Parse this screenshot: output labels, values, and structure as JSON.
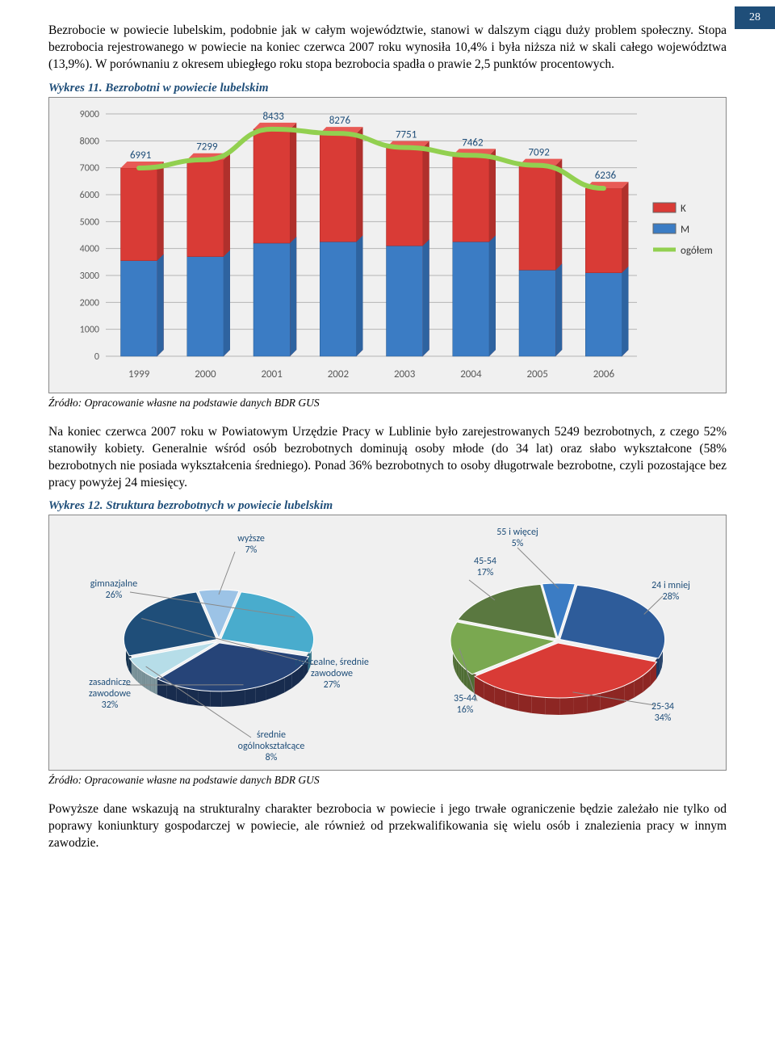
{
  "page_number": "28",
  "para1": "Bezrobocie w powiecie lubelskim, podobnie jak w całym województwie, stanowi w dalszym ciągu duży problem społeczny. Stopa bezrobocia rejestrowanego w powiecie na koniec czerwca 2007 roku wynosiła 10,4% i była niższa niż w skali całego województwa (13,9%). W porównaniu z okresem ubiegłego roku stopa bezrobocia spadła o prawie 2,5 punktów procentowych.",
  "chart1_caption": "Wykres 11. Bezrobotni w powiecie lubelskim",
  "chart1": {
    "type": "bar_stacked_with_line",
    "background": "#f0f0f0",
    "plot_bg": "#f0f0f0",
    "grid_color": "#b5b5b5",
    "y_max": 9000,
    "y_ticks": [
      0,
      1000,
      2000,
      3000,
      4000,
      5000,
      6000,
      7000,
      8000,
      9000
    ],
    "years": [
      "1999",
      "2000",
      "2001",
      "2002",
      "2003",
      "2004",
      "2005",
      "2006"
    ],
    "totals": [
      6991,
      7299,
      8433,
      8276,
      7751,
      7462,
      7092,
      6236
    ],
    "M_values": [
      3550,
      3700,
      4200,
      4250,
      4100,
      4250,
      3200,
      3100
    ],
    "K_color": "#d93b36",
    "M_color": "#3b7cc4",
    "line_color": "#92d050",
    "label_color": "#1f4e79",
    "tick_fontsize": 12,
    "label_fontsize": 13,
    "legend": [
      {
        "label": "K",
        "type": "box",
        "color": "#d93b36"
      },
      {
        "label": "M",
        "type": "box",
        "color": "#3b7cc4"
      },
      {
        "label": "ogółem",
        "type": "line",
        "color": "#92d050"
      }
    ]
  },
  "source1": "Źródło: Opracowanie własne na podstawie danych BDR GUS",
  "para2": "Na koniec czerwca 2007 roku w Powiatowym Urzędzie Pracy w Lublinie było zarejestrowanych 5249 bezrobotnych, z czego 52% stanowiły kobiety. Generalnie wśród osób bezrobotnych dominują osoby młode (do 34 lat) oraz słabo wykształcone (58% bezrobotnych nie posiada wykształcenia średniego). Ponad 36% bezrobotnych to osoby długotrwale bezrobotne, czyli pozostające bez pracy powyżej 24 miesięcy.",
  "chart2_caption": "Wykres 12. Struktura bezrobotnych w powiecie lubelskim",
  "chart2": {
    "type": "pie_pair_3d",
    "background": "#f0f0f0",
    "label_color": "#1f4e79",
    "label_fontsize": 12,
    "left_pie": [
      {
        "label": "wyższe",
        "pct": 7,
        "color": "#9cc3e6",
        "text": "wyższe\n7%"
      },
      {
        "label": "gimnazjalne",
        "pct": 26,
        "color": "#49accd",
        "text": "gimnazjalne\n26%"
      },
      {
        "label": "zasadnicze zawodowe",
        "pct": 32,
        "color": "#264478",
        "text": "zasadnicze\nzawodowe\n32%"
      },
      {
        "label": "średnie ogólnokształcące",
        "pct": 8,
        "color": "#b6dde8",
        "text": "średnie\nogólnokształcące\n8%"
      },
      {
        "label": "policealne, średnie zawodowe",
        "pct": 27,
        "color": "#1f4e79",
        "text": "policealne, średnie\nzawodowe\n27%"
      }
    ],
    "right_pie": [
      {
        "label": "55 i więcej",
        "pct": 5,
        "color": "#3b7cc4",
        "text": "55 i więcej\n5%"
      },
      {
        "label": "24 i mniej",
        "pct": 28,
        "color": "#2e5c9a",
        "text": "24 i mniej\n28%"
      },
      {
        "label": "25-34",
        "pct": 34,
        "color": "#d93b36",
        "text": "25-34\n34%"
      },
      {
        "label": "35-44",
        "pct": 16,
        "color": "#7aa850",
        "text": "35-44\n16%"
      },
      {
        "label": "45-54",
        "pct": 17,
        "color": "#5a7840",
        "text": "45-54\n17%"
      }
    ]
  },
  "source2": "Źródło: Opracowanie własne na podstawie danych BDR GUS",
  "para3": "Powyższe dane wskazują na strukturalny charakter bezrobocia w powiecie i jego trwałe ograniczenie będzie zależało nie tylko od poprawy koniunktury gospodarczej w powiecie, ale również od przekwalifikowania się wielu osób i znalezienia pracy w innym zawodzie."
}
